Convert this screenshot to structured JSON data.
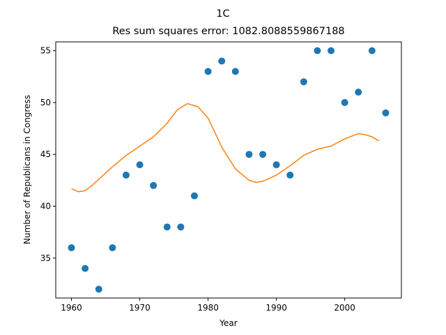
{
  "colors": {
    "scatter": "#1f77b4",
    "fit_line": "#ff7f0e",
    "axes": "#000000",
    "background": "#ffffff"
  },
  "chart_data": {
    "type": "scatter",
    "suptitle": "1C",
    "title": "Res sum squares error: 1082.8088559867188",
    "xlabel": "Year",
    "ylabel": "Number of Republicans in Congress",
    "xlim": [
      1957.7,
      2008.3
    ],
    "ylim": [
      31.15,
      55.85
    ],
    "xticks": [
      1960,
      1970,
      1980,
      1990,
      2000
    ],
    "yticks": [
      35,
      40,
      45,
      50,
      55
    ],
    "grid": false,
    "series": [
      {
        "type": "scatter",
        "x": [
          1960,
          1962,
          1964,
          1966,
          1968,
          1970,
          1972,
          1974,
          1976,
          1978,
          1980,
          1982,
          1984,
          1986,
          1988,
          1990,
          1992,
          1994,
          1996,
          1998,
          2000,
          2002,
          2004,
          2006
        ],
        "y": [
          36,
          34,
          32,
          36,
          43,
          44,
          42,
          38,
          38,
          41,
          53,
          54,
          53,
          45,
          45,
          44,
          43,
          52,
          55,
          55,
          50,
          51,
          55,
          49
        ]
      },
      {
        "type": "line",
        "x": [
          1960,
          1961,
          1962,
          1963,
          1964,
          1966,
          1968,
          1970,
          1972,
          1974,
          1975.5,
          1977,
          1978.5,
          1980,
          1982,
          1984,
          1986,
          1987,
          1988,
          1990,
          1992,
          1994,
          1996,
          1998,
          2000,
          2002,
          2003,
          2004,
          2005
        ],
        "y": [
          41.7,
          41.4,
          41.5,
          42.0,
          42.6,
          43.8,
          44.9,
          45.8,
          46.7,
          48.0,
          49.3,
          49.9,
          49.6,
          48.5,
          45.7,
          43.6,
          42.5,
          42.3,
          42.4,
          43.0,
          43.9,
          44.9,
          45.5,
          45.8,
          46.5,
          47.0,
          46.9,
          46.7,
          46.3
        ]
      }
    ]
  }
}
